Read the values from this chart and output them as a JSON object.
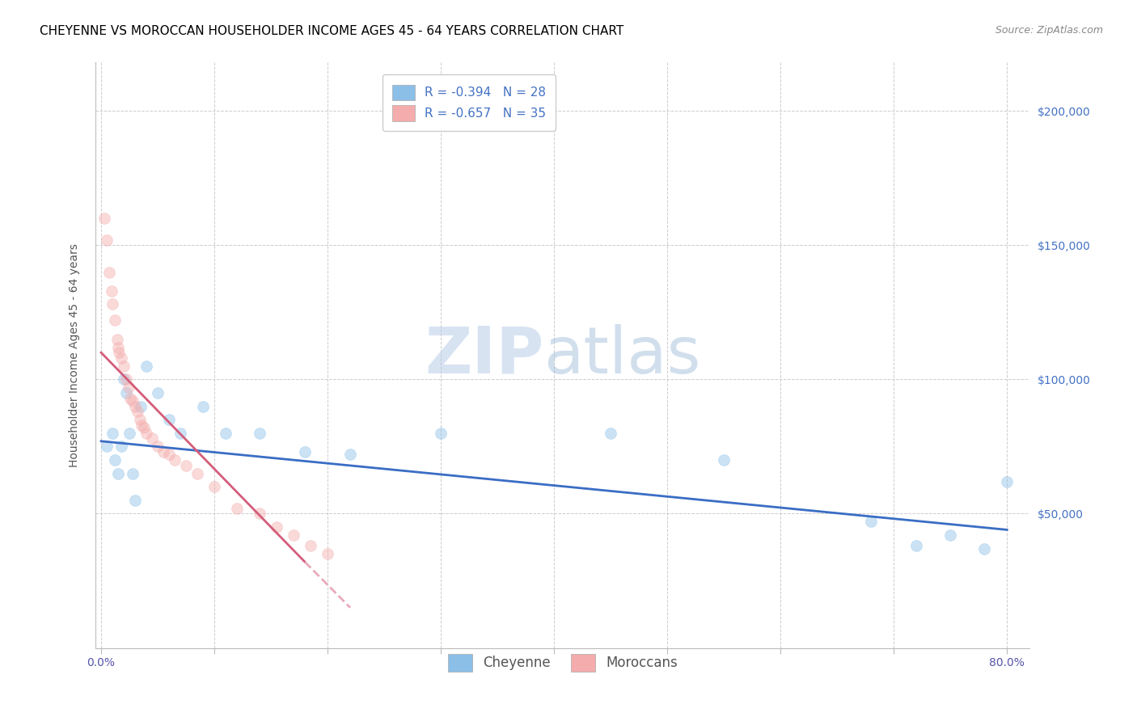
{
  "title": "CHEYENNE VS MOROCCAN HOUSEHOLDER INCOME AGES 45 - 64 YEARS CORRELATION CHART",
  "source": "Source: ZipAtlas.com",
  "ylabel": "Householder Income Ages 45 - 64 years",
  "ytick_labels": [
    "$50,000",
    "$100,000",
    "$150,000",
    "$200,000"
  ],
  "ytick_vals": [
    50000,
    100000,
    150000,
    200000
  ],
  "ylim": [
    0,
    218000
  ],
  "xlim": [
    -0.5,
    82
  ],
  "cheyenne_color": "#8BBFE8",
  "moroccan_color": "#F4ACAC",
  "cheyenne_line_color": "#3A6DC4",
  "moroccan_line_color": "#D45C7A",
  "moroccan_line_dashed_color": "#E8AABB",
  "legend_R_cheyenne": "R = -0.394",
  "legend_N_cheyenne": "N = 28",
  "legend_R_moroccan": "R = -0.657",
  "legend_N_moroccan": "N = 35",
  "watermark_zip": "ZIP",
  "watermark_atlas": "atlas",
  "cheyenne_x": [
    0.5,
    1.0,
    1.2,
    1.5,
    1.8,
    2.0,
    2.2,
    2.5,
    2.8,
    3.0,
    3.5,
    4.0,
    5.0,
    6.0,
    7.0,
    9.0,
    11.0,
    14.0,
    18.0,
    22.0,
    30.0,
    45.0,
    55.0,
    68.0,
    72.0,
    75.0,
    78.0,
    80.0
  ],
  "cheyenne_y": [
    75000,
    80000,
    70000,
    65000,
    75000,
    100000,
    95000,
    80000,
    65000,
    55000,
    90000,
    105000,
    95000,
    85000,
    80000,
    90000,
    80000,
    80000,
    73000,
    72000,
    80000,
    80000,
    70000,
    47000,
    38000,
    42000,
    37000,
    62000
  ],
  "moroccan_x": [
    0.3,
    0.5,
    0.7,
    0.9,
    1.0,
    1.2,
    1.4,
    1.5,
    1.6,
    1.8,
    2.0,
    2.2,
    2.4,
    2.6,
    2.8,
    3.0,
    3.2,
    3.4,
    3.6,
    3.8,
    4.0,
    4.5,
    5.0,
    5.5,
    6.0,
    6.5,
    7.5,
    8.5,
    10.0,
    12.0,
    14.0,
    15.5,
    17.0,
    18.5,
    20.0
  ],
  "moroccan_y": [
    160000,
    152000,
    140000,
    133000,
    128000,
    122000,
    115000,
    112000,
    110000,
    108000,
    105000,
    100000,
    97000,
    93000,
    92000,
    90000,
    88000,
    85000,
    83000,
    82000,
    80000,
    78000,
    75000,
    73000,
    72000,
    70000,
    68000,
    65000,
    60000,
    52000,
    50000,
    45000,
    42000,
    38000,
    35000
  ],
  "blue_line_x0": 0.0,
  "blue_line_y0": 77000,
  "blue_line_x1": 80.0,
  "blue_line_y1": 44000,
  "pink_line_x0": 0.0,
  "pink_line_y0": 110000,
  "pink_line_x1": 18.0,
  "pink_line_y1": 32000,
  "pink_dashed_x0": 18.0,
  "pink_dashed_y0": 32000,
  "pink_dashed_x1": 22.0,
  "pink_dashed_y1": 15000,
  "grid_color": "#CCCCCC",
  "background_color": "#FFFFFF",
  "title_fontsize": 11,
  "axis_label_fontsize": 10,
  "tick_fontsize": 10,
  "legend_fontsize": 11,
  "marker_size": 100,
  "marker_alpha": 0.45,
  "line_width": 2.0
}
